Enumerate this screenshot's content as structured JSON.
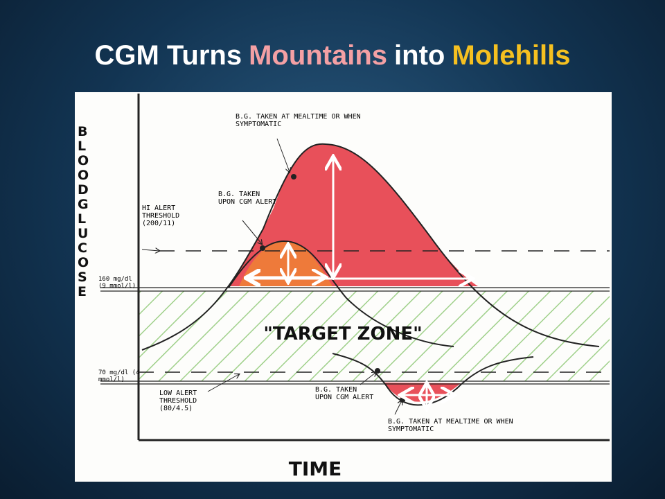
{
  "header": {
    "title": {
      "parts": [
        "CGM Turns",
        "Mountains",
        "into",
        "Molehills"
      ]
    }
  },
  "diagram": {
    "y_axis_label": "BLOOD GLUCOSE",
    "x_axis_label": "TIME",
    "annotations": {
      "high_mealtime": "B.G. TAKEN AT MEALTIME OR WHEN SYMPTOMATIC",
      "high_cgm": "B.G. TAKEN UPON CGM ALERT",
      "hi_alert": "HI ALERT THRESHOLD (200/11)",
      "level_160": "160 mg/dl (9 mmol/l)",
      "level_70": "70 mg/dl (4 mmol/l)",
      "low_alert": "LOW ALERT THRESHOLD (80/4.5)",
      "target_zone": "\"TARGET ZONE\"",
      "low_cgm": "B.G. TAKEN UPON CGM ALERT",
      "low_mealtime": "B.G. TAKEN AT MEALTIME OR WHEN SYMPTOMATIC"
    }
  }
}
